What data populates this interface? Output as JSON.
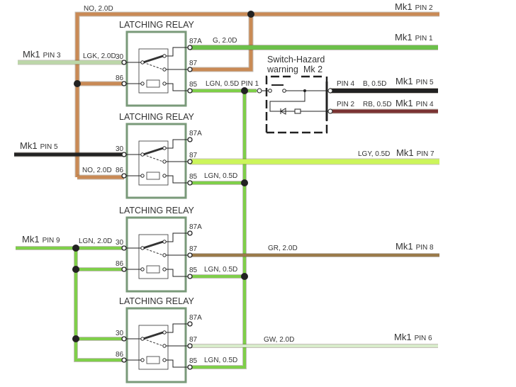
{
  "relay_title": "LATCHING RELAY",
  "relays": [
    {
      "pin30": "30",
      "pin86": "86",
      "pin87a": "87A",
      "pin87": "87",
      "pin85": "85"
    },
    {
      "pin30": "30",
      "pin86": "86",
      "pin87a": "87A",
      "pin87": "87",
      "pin85": "85"
    },
    {
      "pin30": "30",
      "pin86": "86",
      "pin87a": "87A",
      "pin87": "87",
      "pin85": "85"
    },
    {
      "pin30": "30",
      "pin86": "86",
      "pin87a": "87A",
      "pin87": "87",
      "pin85": "85"
    }
  ],
  "switch": {
    "title_line1": "Switch-Hazard",
    "title_line2": "warning",
    "mk": "Mk 2",
    "pin1": "PIN 1",
    "pin4": "PIN 4",
    "pin2": "PIN 2"
  },
  "wire_labels": {
    "no_top": "NO, 2.0D",
    "g": "G, 2.0D",
    "lgk": "LGK, 2.0D",
    "lgn1": "LGN, 0.5D",
    "b": "B, 0.5D",
    "rb": "RB, 0.5D",
    "lgy": "LGY, 0.5D",
    "no_mid": "NO, 2.0D",
    "lgn2": "LGN, 0.5D",
    "lgn_in": "LGN, 2.0D",
    "gr": "GR, 2.0D",
    "lgn3": "LGN, 0.5D",
    "gw": "GW, 2.0D",
    "lgn4": "LGN, 0.5D"
  },
  "connectors": {
    "mk1_pin2": {
      "mk": "Mk1",
      "pin": "PIN 2"
    },
    "mk1_pin1": {
      "mk": "Mk1",
      "pin": "PIN 1"
    },
    "mk1_pin3": {
      "mk": "Mk1",
      "pin": "PIN 3"
    },
    "mk1_pin5_right": {
      "mk": "Mk1",
      "pin": "PIN 5"
    },
    "mk1_pin4": {
      "mk": "Mk1",
      "pin": "PIN 4"
    },
    "mk1_pin5_left": {
      "mk": "Mk1",
      "pin": "PIN 5"
    },
    "mk1_pin7": {
      "mk": "Mk1",
      "pin": "PIN 7"
    },
    "mk1_pin9": {
      "mk": "Mk1",
      "pin": "PIN 9"
    },
    "mk1_pin8": {
      "mk": "Mk1",
      "pin": "PIN 8"
    },
    "mk1_pin6": {
      "mk": "Mk1",
      "pin": "PIN 6"
    }
  },
  "colors": {
    "brown": "#c98a55",
    "green": "#6cc04a",
    "pale_green": "#bcd7a8",
    "lgn": "#7fcf4a",
    "black": "#222222",
    "maroon": "#7a3333",
    "lgy": "#ccf55a",
    "gr": "#9a7a4a",
    "gw": "#d8eccb",
    "relay_box": "#7a9a7a"
  }
}
